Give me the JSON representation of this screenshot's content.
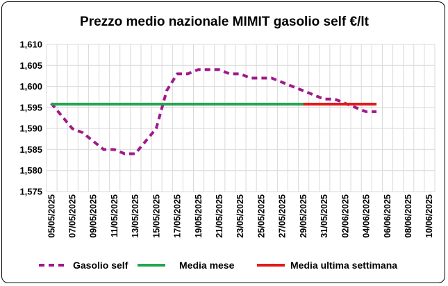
{
  "chart_data": {
    "type": "line",
    "title": "Prezzo medio nazionale MIMIT gasolio self €/lt",
    "xlabel": "",
    "ylabel": "",
    "ylim": [
      1.575,
      1.61
    ],
    "y_ticks": [
      "1,575",
      "1,580",
      "1,585",
      "1,590",
      "1,595",
      "1,600",
      "1,605",
      "1,610"
    ],
    "x_range": [
      "2025-05-05",
      "2025-06-11"
    ],
    "x_ticks": [
      "05/05/2025",
      "07/05/2025",
      "09/05/2025",
      "11/05/2025",
      "13/05/2025",
      "15/05/2025",
      "17/05/2025",
      "19/05/2025",
      "21/05/2025",
      "23/05/2025",
      "25/05/2025",
      "27/05/2025",
      "29/05/2025",
      "31/05/2025",
      "02/06/2025",
      "04/06/2025",
      "06/06/2025",
      "08/06/2025",
      "10/06/2025"
    ],
    "grid": true,
    "legend_position": "bottom",
    "series": [
      {
        "name": "Gasolio self",
        "color": "#a0198c",
        "style": "dashed",
        "x": [
          "2025-05-05",
          "2025-05-06",
          "2025-05-07",
          "2025-05-08",
          "2025-05-09",
          "2025-05-10",
          "2025-05-11",
          "2025-05-12",
          "2025-05-13",
          "2025-05-14",
          "2025-05-15",
          "2025-05-16",
          "2025-05-17",
          "2025-05-18",
          "2025-05-19",
          "2025-05-20",
          "2025-05-21",
          "2025-05-22",
          "2025-05-23",
          "2025-05-24",
          "2025-05-25",
          "2025-05-26",
          "2025-05-27",
          "2025-05-28",
          "2025-05-29",
          "2025-05-30",
          "2025-05-31",
          "2025-06-01",
          "2025-06-02",
          "2025-06-03",
          "2025-06-04",
          "2025-06-05"
        ],
        "values": [
          1.596,
          1.593,
          1.59,
          1.589,
          1.587,
          1.585,
          1.585,
          1.584,
          1.584,
          1.587,
          1.59,
          1.599,
          1.603,
          1.603,
          1.604,
          1.604,
          1.604,
          1.603,
          1.603,
          1.602,
          1.602,
          1.602,
          1.601,
          1.6,
          1.599,
          1.598,
          1.597,
          1.597,
          1.596,
          1.595,
          1.594,
          1.594
        ]
      },
      {
        "name": "Media mese",
        "color": "#22a650",
        "style": "solid",
        "x": [
          "2025-05-05",
          "2025-05-29"
        ],
        "values": [
          1.5958,
          1.5958
        ]
      },
      {
        "name": "Media ultima settimana",
        "color": "#e01b1b",
        "style": "solid",
        "x": [
          "2025-05-29",
          "2025-06-05"
        ],
        "values": [
          1.5958,
          1.5958
        ]
      }
    ]
  }
}
